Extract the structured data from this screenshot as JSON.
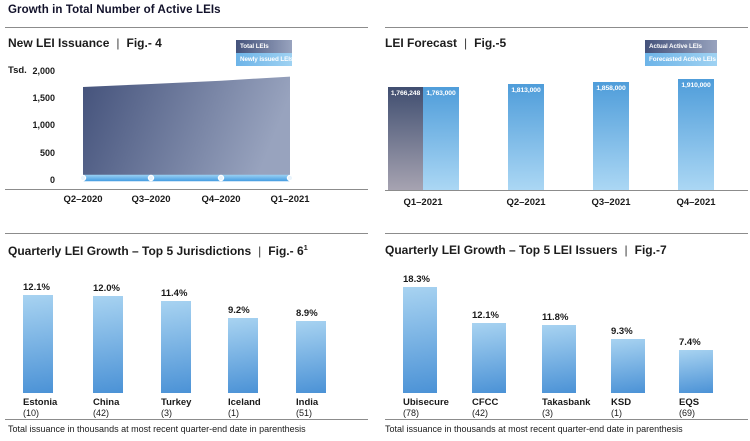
{
  "page": {
    "title": "Growth in Total Number of Active LEIs"
  },
  "ui": {
    "separator": "|"
  },
  "colors": {
    "divider": "#8c8c8c",
    "title_text": "#12122b",
    "body_text": "#1a1a1a",
    "area_gradient_left": "#44527b",
    "area_gradient_right": "#98a3be",
    "actual_bar_top": "#404e70",
    "actual_bar_bottom": "#a6a3b1",
    "forecast_bar_top": "#4f9dda",
    "forecast_bar_bottom": "#abd7f4",
    "growth_bar_top": "#a8d3f1",
    "growth_bar_bottom": "#4b92d6",
    "issuance_line_top": "#9bd1f3",
    "issuance_line_bottom": "#449ce1",
    "legend_light_left": "#6db4e8",
    "legend_light_right": "#9fd2f2",
    "bar_value_text": "#ffffff"
  },
  "chart_data": [
    {
      "type": "area",
      "title": "New LEI Issuance",
      "fig": "Fig.- 4",
      "legend": [
        "Total LEIs",
        "Newly issued LEIs"
      ],
      "ylabel": "Tsd.",
      "ylim": [
        0,
        2000
      ],
      "ytick_labels": [
        "2,000",
        "1,500",
        "1,000",
        "500",
        "0"
      ],
      "ytick_values": [
        2000,
        1500,
        1000,
        500,
        0
      ],
      "categories": [
        "Q2–2020",
        "Q3–2020",
        "Q4–2020",
        "Q1–2021"
      ],
      "series": [
        {
          "name": "Total LEIs",
          "values": [
            1690,
            1745,
            1805,
            1880
          ]
        },
        {
          "name": "Newly issued LEIs",
          "values": [
            30,
            30,
            30,
            30
          ]
        }
      ],
      "legend_position": "top-right",
      "grid": false
    },
    {
      "type": "bar",
      "title": "LEI Forecast",
      "fig": "Fig.-5",
      "legend": [
        "Actual Active LEIs",
        "Forecasted Active LEIs"
      ],
      "categories": [
        "Q1–2021",
        "Q2–2021",
        "Q3–2021",
        "Q4–2021"
      ],
      "series": [
        {
          "name": "Actual Active LEIs",
          "values": [
            1766248
          ],
          "labels": [
            "1,766,248"
          ],
          "category_index": [
            0
          ]
        },
        {
          "name": "Forecasted Active LEIs",
          "values": [
            1763000,
            1813000,
            1858000,
            1910000
          ],
          "labels": [
            "1,763,000",
            "1,813,000",
            "1,858,000",
            "1,910,000"
          ],
          "category_index": [
            0,
            1,
            2,
            3
          ]
        }
      ],
      "legend_position": "top-right",
      "grid": false
    },
    {
      "type": "bar",
      "title": "Quarterly LEI Growth – Top 5 Jurisdictions",
      "fig": "Fig.- 6",
      "fig_sup": "1",
      "categories": [
        "Estonia",
        "China",
        "Turkey",
        "Iceland",
        "India"
      ],
      "counts": [
        "(10)",
        "(42)",
        "(3)",
        "(1)",
        "(51)"
      ],
      "values": [
        12.1,
        12.0,
        11.4,
        9.2,
        8.9
      ],
      "value_labels": [
        "12.1%",
        "12.0%",
        "11.4%",
        "9.2%",
        "8.9%"
      ],
      "note": "Total issuance in thousands at most recent quarter-end date in parenthesis",
      "grid": false
    },
    {
      "type": "bar",
      "title": "Quarterly LEI Growth – Top 5 LEI Issuers",
      "fig": "Fig.-7",
      "categories": [
        "Ubisecure",
        "CFCC",
        "Takasbank",
        "KSD",
        "EQS"
      ],
      "counts": [
        "(78)",
        "(42)",
        "(3)",
        "(1)",
        "(69)"
      ],
      "values": [
        18.3,
        12.1,
        11.8,
        9.3,
        7.4
      ],
      "value_labels": [
        "18.3%",
        "12.1%",
        "11.8%",
        "9.3%",
        "7.4%"
      ],
      "note": "Total issuance in thousands at most recent quarter-end date in parenthesis",
      "grid": false
    }
  ]
}
